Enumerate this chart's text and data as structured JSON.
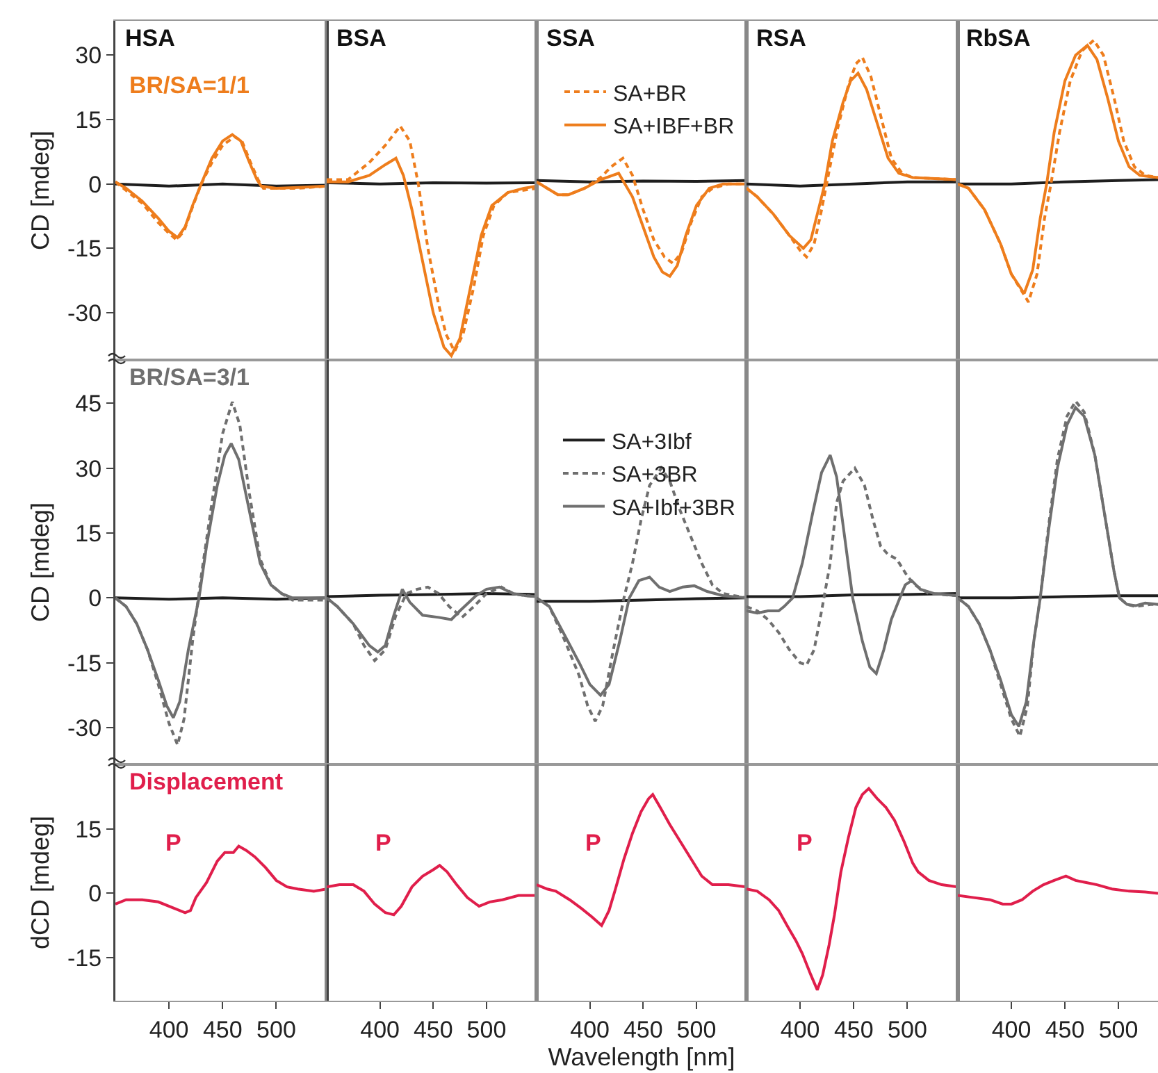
{
  "chart_data": [
    {
      "type": "line",
      "title": "HSA",
      "xlim": [
        350,
        547
      ],
      "ylim": [
        -41,
        38
      ],
      "yticks": [
        -30,
        -15,
        0,
        15,
        30
      ],
      "ylabel": "CD [mdeg]",
      "tick_labels": "y",
      "annotations": [
        "BR/SA=1/1"
      ],
      "series": [
        {
          "color": "#1e1e1e",
          "x": [
            350,
            400,
            450,
            500,
            547
          ],
          "values": [
            0,
            -0.5,
            0,
            -0.5,
            -0.3
          ]
        },
        {
          "color": "#ee7d1c",
          "line_style": "dashed",
          "x": [
            350,
            360,
            375,
            390,
            400,
            407,
            414,
            421,
            430,
            440,
            450,
            461,
            468,
            476,
            483,
            488,
            500,
            520,
            547
          ],
          "values": [
            0.5,
            -1.5,
            -4.5,
            -9,
            -11.5,
            -13,
            -11,
            -6,
            0,
            5,
            9,
            11,
            10,
            5,
            1,
            -1,
            -1,
            -1,
            -0.5
          ]
        },
        {
          "color": "#ee7d1c",
          "line_style": "solid",
          "x": [
            350,
            360,
            375,
            390,
            400,
            408,
            415,
            422,
            430,
            440,
            450,
            459,
            467,
            475,
            482,
            486,
            500,
            520,
            547
          ],
          "values": [
            0.5,
            -1,
            -4,
            -8,
            -11,
            -12.5,
            -10,
            -5,
            0,
            6,
            10,
            11.5,
            10,
            5,
            1,
            -0.5,
            -1,
            -0.8,
            -0.5
          ]
        }
      ]
    },
    {
      "type": "line",
      "title": "BSA",
      "xlim": [
        350,
        547
      ],
      "ylim": [
        -41,
        38
      ],
      "tick_labels": false,
      "series": [
        {
          "color": "#1e1e1e",
          "x": [
            350,
            400,
            450,
            500,
            547
          ],
          "values": [
            0.3,
            0,
            0.3,
            0.2,
            0.3
          ]
        },
        {
          "color": "#ee7d1c",
          "line_style": "dashed",
          "x": [
            350,
            370,
            390,
            405,
            419,
            428,
            436,
            445,
            455,
            462,
            470,
            478,
            488,
            497,
            507,
            520,
            547
          ],
          "values": [
            1,
            1,
            5,
            9,
            13.5,
            10,
            0,
            -15,
            -28,
            -35,
            -39,
            -35,
            -24,
            -12,
            -5,
            -2,
            -1
          ]
        },
        {
          "color": "#ee7d1c",
          "line_style": "solid",
          "x": [
            350,
            370,
            390,
            405,
            415,
            422,
            430,
            440,
            450,
            460,
            467,
            475,
            485,
            495,
            505,
            520,
            535,
            547
          ],
          "values": [
            0.5,
            0.5,
            2,
            4.5,
            6,
            2,
            -6,
            -18,
            -30,
            -38,
            -40,
            -36,
            -24,
            -12,
            -5,
            -2,
            -1,
            -0.5
          ]
        }
      ]
    },
    {
      "type": "line",
      "title": "SSA",
      "xlim": [
        350,
        547
      ],
      "ylim": [
        -41,
        38
      ],
      "tick_labels": false,
      "legend": "top right",
      "series": [
        {
          "color": "#1e1e1e",
          "x": [
            350,
            400,
            450,
            500,
            547
          ],
          "values": [
            0.8,
            0.5,
            0.7,
            0.6,
            0.8
          ]
        },
        {
          "name": "SA+BR",
          "color": "#ee7d1c",
          "line_style": "dashed",
          "x": [
            350,
            360,
            370,
            380,
            395,
            410,
            420,
            431,
            440,
            450,
            460,
            470,
            478,
            486,
            495,
            505,
            515,
            530,
            547
          ],
          "values": [
            0.5,
            -1,
            -2.5,
            -2.5,
            -1,
            1.5,
            4,
            6,
            2,
            -6,
            -13,
            -17,
            -18.5,
            -16,
            -9,
            -3,
            -1,
            0,
            0
          ]
        },
        {
          "name": "SA+IBF+BR",
          "color": "#ee7d1c",
          "line_style": "solid",
          "x": [
            350,
            360,
            370,
            380,
            395,
            410,
            427,
            440,
            450,
            460,
            468,
            475,
            482,
            490,
            500,
            512,
            525,
            547
          ],
          "values": [
            0.5,
            -1,
            -2.5,
            -2.5,
            -1,
            1,
            2.5,
            -3,
            -10,
            -17,
            -20.5,
            -21.5,
            -19,
            -12,
            -5,
            -1,
            0,
            0
          ]
        }
      ]
    },
    {
      "type": "line",
      "title": "RSA",
      "xlim": [
        350,
        547
      ],
      "ylim": [
        -41,
        38
      ],
      "tick_labels": false,
      "series": [
        {
          "color": "#1e1e1e",
          "x": [
            350,
            400,
            450,
            500,
            547
          ],
          "values": [
            0,
            -0.5,
            0,
            0.5,
            0.5
          ]
        },
        {
          "color": "#ee7d1c",
          "line_style": "dashed",
          "x": [
            350,
            360,
            375,
            390,
            400,
            406,
            413,
            420,
            427,
            435,
            445,
            452,
            458,
            466,
            475,
            485,
            495,
            505,
            547
          ],
          "values": [
            -1,
            -3,
            -7,
            -12,
            -15.5,
            -17,
            -14,
            -6,
            3,
            13,
            23,
            28,
            29.5,
            25,
            16,
            6,
            2.5,
            1.5,
            1
          ]
        },
        {
          "color": "#ee7d1c",
          "line_style": "solid",
          "x": [
            350,
            360,
            375,
            390,
            403,
            410,
            418,
            423,
            430,
            440,
            447,
            454,
            462,
            472,
            482,
            492,
            505,
            547
          ],
          "values": [
            -1,
            -3,
            -7,
            -12,
            -15,
            -13,
            -5,
            0,
            10,
            19,
            24,
            25.8,
            22,
            14,
            6,
            2.5,
            1.5,
            1
          ]
        }
      ]
    },
    {
      "type": "line",
      "title": "RbSA",
      "xlim": [
        350,
        537
      ],
      "ylim": [
        -41,
        38
      ],
      "tick_labels": false,
      "series": [
        {
          "color": "#1e1e1e",
          "x": [
            350,
            400,
            450,
            500,
            537
          ],
          "values": [
            0,
            0,
            0.5,
            0.8,
            1
          ]
        },
        {
          "color": "#ee7d1c",
          "line_style": "dashed",
          "x": [
            350,
            360,
            375,
            390,
            400,
            416,
            424,
            431,
            437,
            445,
            455,
            466,
            477,
            486,
            496,
            505,
            515,
            525,
            537
          ],
          "values": [
            0,
            -1,
            -6,
            -14,
            -21,
            -27.5,
            -21,
            -8,
            0,
            12,
            24,
            31,
            33.5,
            30,
            20,
            10,
            4,
            2,
            1.5
          ]
        },
        {
          "color": "#ee7d1c",
          "line_style": "solid",
          "x": [
            350,
            360,
            375,
            390,
            400,
            412,
            420,
            427,
            433,
            440,
            450,
            460,
            471,
            480,
            490,
            500,
            510,
            520,
            537
          ],
          "values": [
            0,
            -1,
            -6,
            -14,
            -21,
            -25.5,
            -20,
            -8,
            0,
            12,
            24,
            30,
            32.3,
            29,
            20,
            10,
            4,
            2,
            1.5
          ]
        }
      ]
    },
    {
      "type": "line",
      "xlim": [
        350,
        547
      ],
      "ylim": [
        -38.5,
        55
      ],
      "yticks": [
        -30,
        -15,
        0,
        15,
        30,
        45
      ],
      "ylabel": "CD [mdeg]",
      "tick_labels": "y",
      "annotations": [
        "BR/SA=3/1"
      ],
      "series": [
        {
          "color": "#1e1e1e",
          "x": [
            350,
            400,
            450,
            500,
            547
          ],
          "values": [
            0,
            -0.3,
            0,
            -0.3,
            0
          ]
        },
        {
          "color": "#6f6f6f",
          "line_style": "dashed",
          "x": [
            350,
            360,
            370,
            380,
            390,
            400,
            408,
            414,
            422,
            430,
            440,
            450,
            459,
            466,
            475,
            485,
            495,
            505,
            515,
            547
          ],
          "values": [
            0,
            -2,
            -6,
            -12,
            -20,
            -29,
            -34,
            -28,
            -10,
            5,
            22,
            38,
            45.3,
            40,
            24,
            9,
            3,
            1,
            -0.5,
            -0.5
          ]
        },
        {
          "color": "#6f6f6f",
          "line_style": "solid",
          "x": [
            350,
            360,
            370,
            380,
            390,
            398,
            404,
            410,
            418,
            428,
            435,
            445,
            452,
            458,
            465,
            475,
            485,
            495,
            505,
            515,
            547
          ],
          "values": [
            0,
            -2,
            -6,
            -12,
            -19,
            -25,
            -27.7,
            -24,
            -12,
            0,
            12,
            26,
            33,
            35.7,
            32,
            20,
            8,
            3,
            1,
            0,
            0
          ]
        }
      ]
    },
    {
      "type": "line",
      "xlim": [
        350,
        547
      ],
      "ylim": [
        -38.5,
        55
      ],
      "tick_labels": false,
      "series": [
        {
          "color": "#1e1e1e",
          "x": [
            350,
            400,
            450,
            500,
            547
          ],
          "values": [
            0.3,
            0.6,
            0.8,
            1,
            0.8
          ]
        },
        {
          "color": "#6f6f6f",
          "line_style": "dashed",
          "x": [
            350,
            360,
            375,
            385,
            395,
            405,
            415,
            425,
            435,
            445,
            455,
            465,
            477,
            488,
            500,
            514,
            525,
            537,
            547
          ],
          "values": [
            0,
            -2,
            -6,
            -11,
            -14.5,
            -12,
            -4,
            1,
            2,
            2.5,
            1,
            -2,
            -4.5,
            -2,
            1,
            2.5,
            1,
            0.5,
            0.3
          ]
        },
        {
          "color": "#6f6f6f",
          "line_style": "solid",
          "x": [
            350,
            360,
            375,
            390,
            398,
            405,
            413,
            421,
            428,
            440,
            455,
            467,
            475,
            490,
            500,
            512,
            525,
            537,
            547
          ],
          "values": [
            0,
            -2,
            -6,
            -11,
            -12.5,
            -11,
            -4,
            2,
            -1,
            -4,
            -4.5,
            -5,
            -3,
            0.5,
            2,
            2.5,
            1,
            0.5,
            0.3
          ]
        }
      ]
    },
    {
      "type": "line",
      "xlim": [
        350,
        547
      ],
      "ylim": [
        -38.5,
        55
      ],
      "tick_labels": false,
      "legend": "top right",
      "series": [
        {
          "name": "SA+3Ibf",
          "color": "#1e1e1e",
          "line_style": "solid",
          "x": [
            350,
            400,
            450,
            500,
            547
          ],
          "values": [
            -0.8,
            -0.8,
            -0.5,
            -0.2,
            0
          ]
        },
        {
          "name": "SA+3BR",
          "color": "#6f6f6f",
          "line_style": "dashed",
          "x": [
            350,
            362,
            375,
            390,
            398,
            405,
            412,
            422,
            432,
            440,
            448,
            456,
            467,
            475,
            485,
            495,
            505,
            515,
            525,
            547
          ],
          "values": [
            0,
            -2,
            -9,
            -18,
            -25,
            -28.5,
            -25,
            -12,
            0,
            8,
            18,
            26,
            30,
            27,
            20,
            14,
            8,
            3,
            1,
            0
          ]
        },
        {
          "name": "SA+Ibf+3BR",
          "color": "#6f6f6f",
          "line_style": "solid",
          "x": [
            350,
            362,
            375,
            390,
            400,
            410,
            418,
            428,
            437,
            446,
            456,
            465,
            475,
            487,
            498,
            510,
            525,
            547
          ],
          "values": [
            0,
            -2,
            -8,
            -15,
            -20,
            -22.5,
            -20,
            -10,
            0,
            4,
            4.8,
            2.5,
            1.5,
            2.5,
            2.8,
            1.5,
            0.5,
            0
          ]
        }
      ]
    },
    {
      "type": "line",
      "xlim": [
        350,
        547
      ],
      "ylim": [
        -38.5,
        55
      ],
      "tick_labels": false,
      "series": [
        {
          "color": "#1e1e1e",
          "x": [
            350,
            400,
            450,
            500,
            547
          ],
          "values": [
            0.3,
            0.3,
            0.7,
            0.8,
            1
          ]
        },
        {
          "color": "#6f6f6f",
          "line_style": "dashed",
          "x": [
            350,
            360,
            370,
            380,
            390,
            400,
            406,
            413,
            420,
            428,
            434,
            440,
            451,
            460,
            468,
            475,
            482,
            490,
            500,
            507,
            520,
            547
          ],
          "values": [
            -2,
            -3,
            -5,
            -8,
            -12,
            -15,
            -15.5,
            -12,
            -3,
            8,
            22,
            27,
            30,
            26,
            18,
            12,
            10,
            9,
            5,
            3,
            1,
            0.5
          ]
        },
        {
          "color": "#6f6f6f",
          "line_style": "solid",
          "x": [
            350,
            360,
            370,
            380,
            385,
            393,
            402,
            412,
            420,
            428,
            434,
            441,
            449,
            458,
            465,
            471,
            478,
            485,
            493,
            498,
            504,
            512,
            525,
            547
          ],
          "values": [
            -3,
            -3.5,
            -3,
            -3,
            -2,
            0,
            8,
            20,
            29,
            33,
            28,
            15,
            0,
            -10,
            -16,
            -17.5,
            -12,
            -5,
            0,
            3,
            4,
            2,
            1,
            0.5
          ]
        }
      ]
    },
    {
      "type": "line",
      "xlim": [
        350,
        537
      ],
      "ylim": [
        -38.5,
        55
      ],
      "tick_labels": false,
      "series": [
        {
          "color": "#1e1e1e",
          "x": [
            350,
            400,
            450,
            500,
            537
          ],
          "values": [
            0,
            0,
            0.3,
            0.5,
            0.5
          ]
        },
        {
          "color": "#6f6f6f",
          "line_style": "dashed",
          "x": [
            350,
            360,
            370,
            380,
            390,
            400,
            408,
            415,
            421,
            427,
            435,
            443,
            452,
            460,
            468,
            478,
            488,
            496,
            501,
            508,
            516,
            530,
            537
          ],
          "values": [
            0,
            -2,
            -6,
            -12,
            -20,
            -28,
            -32,
            -25,
            -10,
            0,
            17,
            32,
            42,
            45.5,
            43,
            33,
            18,
            6,
            0,
            -1.5,
            -2,
            -1.5,
            -1.5
          ]
        },
        {
          "color": "#6f6f6f",
          "line_style": "solid",
          "x": [
            350,
            360,
            370,
            380,
            390,
            400,
            407,
            414,
            421,
            427,
            435,
            443,
            452,
            460,
            468,
            478,
            488,
            496,
            501,
            508,
            516,
            525,
            537
          ],
          "values": [
            0,
            -2,
            -6,
            -12,
            -19,
            -27,
            -29.7,
            -24,
            -10,
            0,
            16,
            30,
            40,
            44,
            42,
            33,
            18,
            6,
            0,
            -1.5,
            -1.8,
            -1.2,
            -1.5
          ]
        }
      ]
    },
    {
      "type": "line",
      "xlim": [
        350,
        547
      ],
      "ylim": [
        -25,
        30
      ],
      "xticks": [
        400,
        450,
        500
      ],
      "yticks": [
        -15,
        0,
        15
      ],
      "ylabel": "dCD [mdeg]",
      "annotations": [
        "Displacement",
        "P"
      ],
      "series": [
        {
          "color": "#e01e4b",
          "x": [
            350,
            360,
            375,
            390,
            405,
            415,
            420,
            425,
            435,
            445,
            452,
            460,
            465,
            472,
            480,
            490,
            500,
            510,
            520,
            535,
            547
          ],
          "values": [
            -2.5,
            -1.5,
            -1.5,
            -2,
            -3.5,
            -4.5,
            -4,
            -1,
            2.5,
            7.5,
            9.5,
            9.5,
            11,
            10,
            8.5,
            6,
            3,
            1.5,
            1,
            0.5,
            1
          ]
        }
      ]
    },
    {
      "type": "line",
      "xlim": [
        350,
        547
      ],
      "ylim": [
        -25,
        30
      ],
      "xticks": [
        400,
        450,
        500
      ],
      "tick_labels": "x",
      "annotations": [
        "P"
      ],
      "series": [
        {
          "color": "#e01e4b",
          "x": [
            350,
            362,
            375,
            385,
            395,
            405,
            413,
            420,
            430,
            440,
            450,
            456,
            463,
            472,
            482,
            493,
            503,
            515,
            530,
            547
          ],
          "values": [
            1.5,
            2,
            2,
            0.5,
            -2.5,
            -4.5,
            -5,
            -3,
            1.5,
            4,
            5.5,
            6.5,
            5,
            2,
            -1,
            -3,
            -2,
            -1.5,
            -0.5,
            -0.5
          ]
        }
      ]
    },
    {
      "type": "line",
      "xlim": [
        350,
        547
      ],
      "ylim": [
        -25,
        30
      ],
      "xticks": [
        400,
        450,
        500
      ],
      "xlabel": "Wavelength [nm]",
      "tick_labels": "x",
      "annotations": [
        "P"
      ],
      "series": [
        {
          "color": "#e01e4b",
          "x": [
            350,
            360,
            368,
            381,
            392,
            402,
            411,
            418,
            424,
            432,
            440,
            448,
            455,
            459,
            466,
            475,
            485,
            495,
            505,
            515,
            530,
            547
          ],
          "values": [
            2,
            1,
            0.5,
            -1.5,
            -3.5,
            -5.5,
            -7.5,
            -4,
            1,
            8,
            14,
            19,
            22,
            23,
            20,
            16,
            12,
            8,
            4,
            2,
            2,
            1.5
          ]
        }
      ]
    },
    {
      "type": "line",
      "xlim": [
        350,
        547
      ],
      "ylim": [
        -25,
        30
      ],
      "xticks": [
        400,
        450,
        500
      ],
      "tick_labels": "x",
      "annotations": [
        "P"
      ],
      "series": [
        {
          "color": "#e01e4b",
          "x": [
            350,
            360,
            371,
            380,
            389,
            396,
            402,
            410,
            416,
            421,
            427,
            432,
            438,
            445,
            452,
            458,
            464,
            472,
            480,
            488,
            497,
            505,
            510,
            520,
            532,
            547
          ],
          "values": [
            1,
            0.5,
            -1.5,
            -4,
            -8,
            -11,
            -14,
            -19,
            -22.5,
            -19,
            -12,
            -5,
            5,
            13,
            20,
            23,
            24.4,
            22,
            20,
            17,
            12,
            7,
            5,
            3,
            2,
            1.5
          ]
        }
      ]
    },
    {
      "type": "line",
      "xlim": [
        350,
        537
      ],
      "ylim": [
        -25,
        30
      ],
      "xticks": [
        400,
        450,
        500
      ],
      "tick_labels": "x",
      "series": [
        {
          "color": "#e01e4b",
          "x": [
            350,
            365,
            380,
            392,
            400,
            410,
            420,
            430,
            440,
            451,
            460,
            470,
            480,
            494,
            510,
            525,
            537
          ],
          "values": [
            -0.5,
            -1,
            -1.5,
            -2.5,
            -2.5,
            -1.5,
            0.5,
            2,
            3,
            4,
            3,
            2.5,
            2,
            1,
            0.5,
            0.3,
            0
          ]
        }
      ]
    }
  ]
}
